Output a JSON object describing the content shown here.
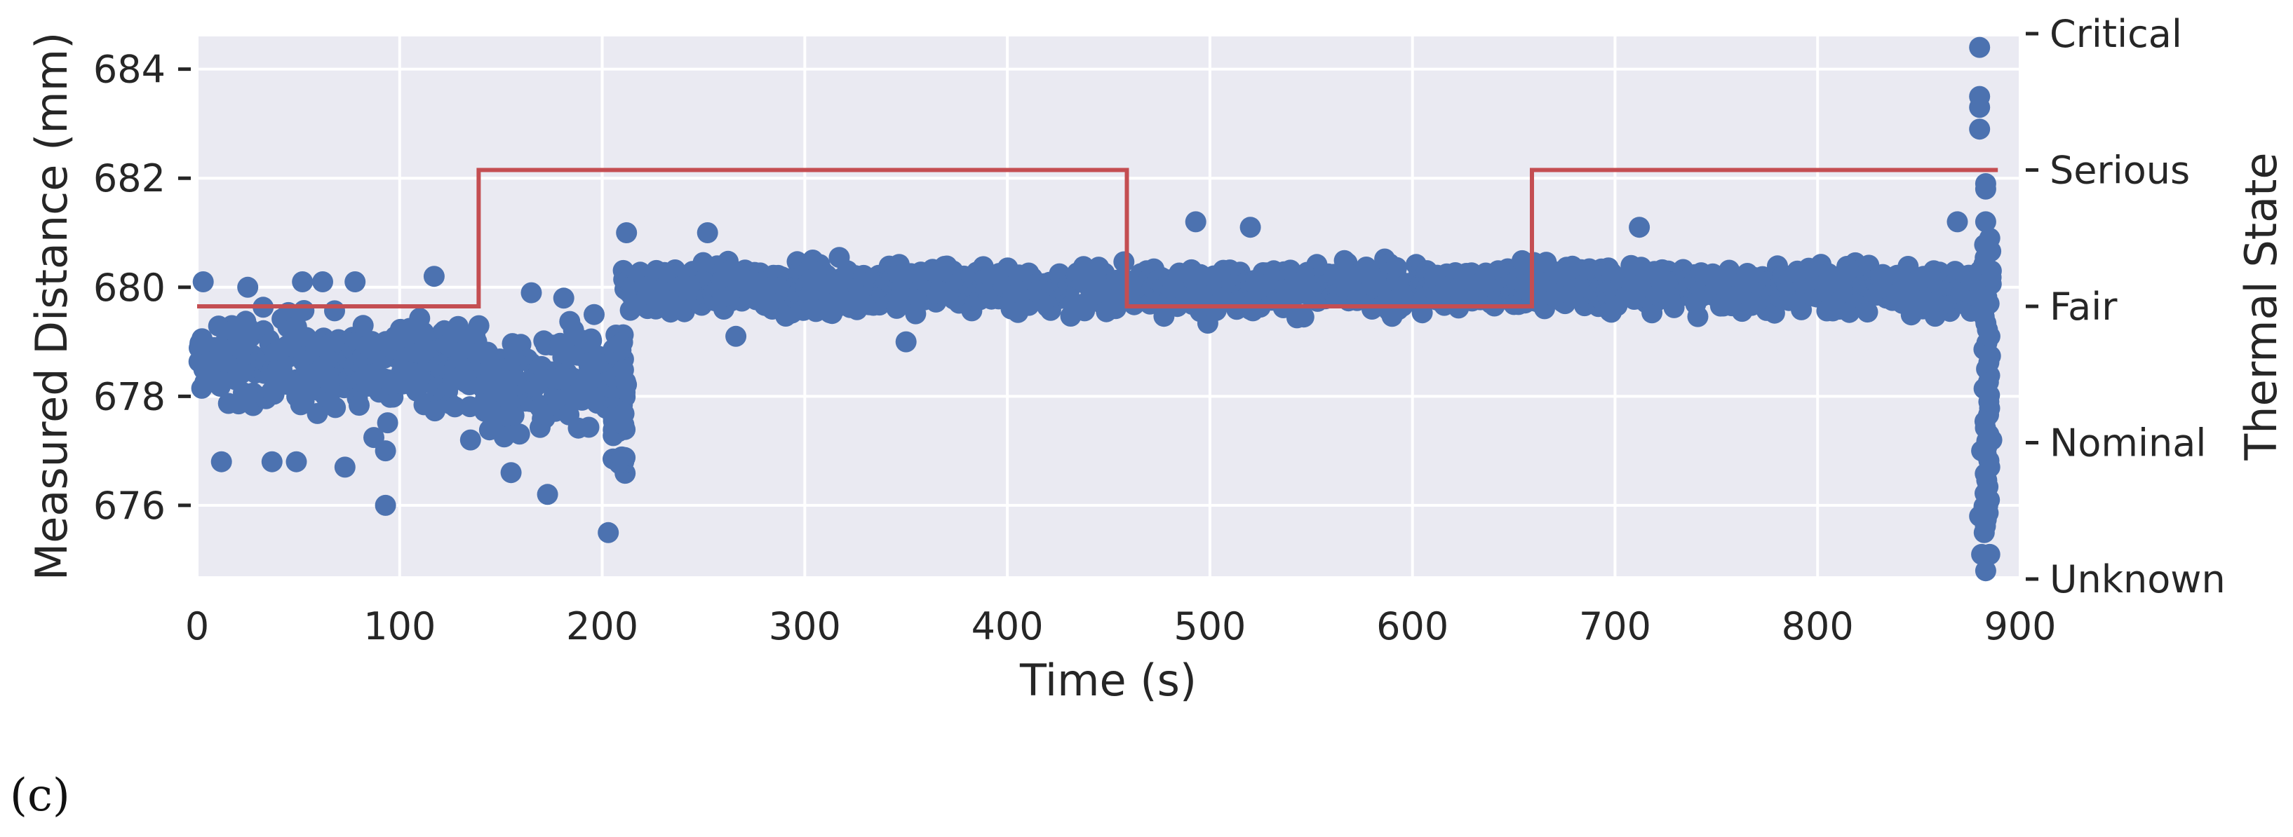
{
  "chart_data": {
    "type": "scatter",
    "xlabel": "Time (s)",
    "ylabel": "Measured Distance (mm)",
    "y2label": "Thermal State",
    "xlim": [
      0,
      900
    ],
    "ylim": [
      674.7,
      684.6
    ],
    "x_ticks": [
      0,
      100,
      200,
      300,
      400,
      500,
      600,
      700,
      800,
      900
    ],
    "y_ticks": [
      676,
      678,
      680,
      682,
      684
    ],
    "y2_ticks": [
      "Unknown",
      "Nominal",
      "Fair",
      "Serious",
      "Critical"
    ],
    "grid": true,
    "colors": {
      "points": "#4c72b0",
      "state_line": "#c44e52",
      "panel_bg": "#eaeaf2",
      "grid": "#ffffff"
    },
    "series": [
      {
        "kind": "scatter",
        "segments": [
          {
            "x_range": [
              0,
              140
            ],
            "mean": 678.6,
            "spread": 0.75
          },
          {
            "x_range": [
              140,
              210
            ],
            "mean": 678.2,
            "spread": 0.85
          },
          {
            "x_range": [
              210,
              880
            ],
            "mean": 680.0,
            "spread": 0.35
          }
        ],
        "outliers": [
          [
            3,
            680.1
          ],
          [
            12,
            676.8
          ],
          [
            25,
            680.0
          ],
          [
            37,
            676.8
          ],
          [
            49,
            676.8
          ],
          [
            52,
            680.1
          ],
          [
            62,
            680.1
          ],
          [
            73,
            676.7
          ],
          [
            78,
            680.1
          ],
          [
            93,
            676.0
          ],
          [
            93,
            677.0
          ],
          [
            117,
            680.2
          ],
          [
            135,
            677.2
          ],
          [
            155,
            676.6
          ],
          [
            165,
            679.9
          ],
          [
            173,
            676.2
          ],
          [
            181,
            679.8
          ],
          [
            196,
            679.5
          ],
          [
            203,
            675.5
          ],
          [
            212,
            681.0
          ],
          [
            252,
            681.0
          ],
          [
            266,
            679.1
          ],
          [
            350,
            679.0
          ],
          [
            493,
            681.2
          ],
          [
            520,
            681.1
          ],
          [
            712,
            681.1
          ],
          [
            869,
            681.2
          ],
          [
            880,
            684.4
          ],
          [
            880,
            683.5
          ],
          [
            880,
            683.3
          ],
          [
            880,
            682.9
          ],
          [
            883,
            681.9
          ],
          [
            883,
            681.8
          ],
          [
            883,
            681.2
          ],
          [
            880,
            675.8
          ],
          [
            881,
            675.1
          ],
          [
            885,
            675.1
          ],
          [
            883,
            674.8
          ],
          [
            884,
            676.0
          ],
          [
            886,
            677.2
          ],
          [
            881,
            677.0
          ]
        ],
        "tail": {
          "x": 884,
          "y_range": [
            675.5,
            681.0
          ]
        }
      },
      {
        "kind": "step",
        "axis": "y2",
        "points": [
          [
            0,
            "Fair"
          ],
          [
            139,
            "Fair"
          ],
          [
            139,
            "Serious"
          ],
          [
            459,
            "Serious"
          ],
          [
            459,
            "Fair"
          ],
          [
            659,
            "Fair"
          ],
          [
            659,
            "Serious"
          ],
          [
            889,
            "Serious"
          ]
        ]
      }
    ]
  },
  "caption": "(c)"
}
